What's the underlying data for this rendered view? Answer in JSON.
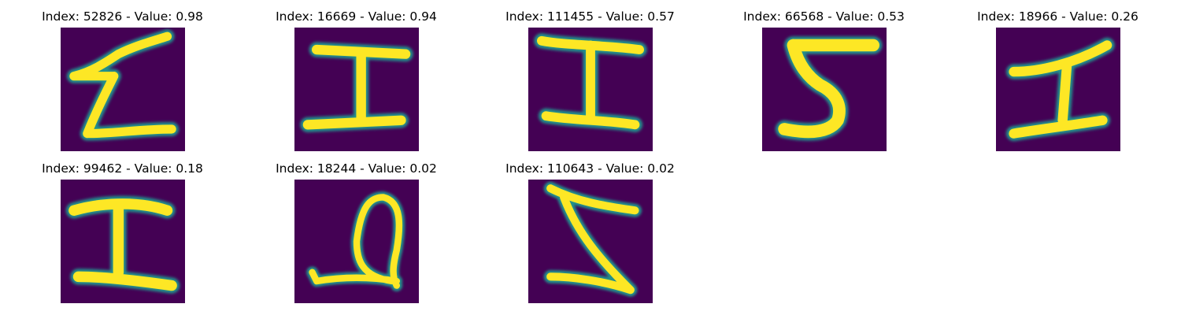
{
  "figure": {
    "background": "#ffffff",
    "colormap": {
      "low": "#440154",
      "mid": "#21918c",
      "high": "#fde725"
    }
  },
  "tiles": [
    {
      "title": "Index: 52826 - Value: 0.98",
      "index": 52826,
      "value": 0.98,
      "glyph": "sigma-like letter"
    },
    {
      "title": "Index: 16669 - Value: 0.94",
      "index": 16669,
      "value": 0.94,
      "glyph": "I"
    },
    {
      "title": "Index: 111455 - Value: 0.57",
      "index": 111455,
      "value": 0.57,
      "glyph": "I"
    },
    {
      "title": "Index: 66568 - Value: 0.53",
      "index": 66568,
      "value": 0.53,
      "glyph": "S-like letter"
    },
    {
      "title": "Index: 18966 - Value: 0.26",
      "index": 18966,
      "value": 0.26,
      "glyph": "I"
    },
    {
      "title": "Index: 99462 - Value: 0.18",
      "index": 99462,
      "value": 0.18,
      "glyph": "I"
    },
    {
      "title": "Index: 18244 - Value: 0.02",
      "index": 18244,
      "value": 0.02,
      "glyph": "loop letter"
    },
    {
      "title": "Index: 110643 - Value: 0.02",
      "index": 110643,
      "value": 0.02,
      "glyph": "Z"
    }
  ]
}
